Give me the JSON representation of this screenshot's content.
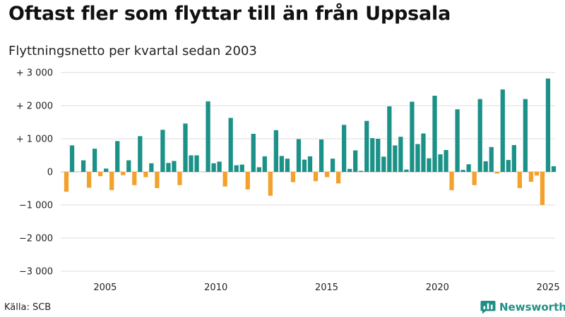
{
  "header": {
    "title": "Oftast fler som flyttar till än från Uppsala",
    "subtitle": "Flyttningsnetto per kvartal sedan 2003"
  },
  "footer": {
    "source": "Källa: SCB",
    "brand": "Newsworthy"
  },
  "colors": {
    "positive": "#1b9188",
    "negative": "#f3a12b",
    "grid": "#dddddd",
    "brand": "#1f8f86"
  },
  "icons": {
    "brand_logo": "bar-chart-speech-bubble-icon"
  },
  "chart_data": {
    "type": "bar",
    "title": "Oftast fler som flyttar till än från Uppsala",
    "subtitle": "Flyttningsnetto per kvartal sedan 2003",
    "xlabel": "",
    "ylabel": "",
    "first_period": "2003 Q2",
    "x_range": [
      2003.25,
      2025.25
    ],
    "ylim": [
      -3000,
      3000
    ],
    "yticks": [
      3000,
      2000,
      1000,
      0,
      -1000,
      -2000,
      -3000
    ],
    "ytick_labels": [
      "+ 3 000",
      "+ 2 000",
      "+ 1 000",
      "0",
      "−1 000",
      "−2 000",
      "−3 000"
    ],
    "xticks": [
      2005,
      2010,
      2015,
      2020,
      2025
    ],
    "xtick_labels": [
      "2005",
      "2010",
      "2015",
      "2020",
      "2025"
    ],
    "grid": true,
    "legend": "none",
    "values": [
      -600,
      800,
      0,
      350,
      -480,
      700,
      -130,
      100,
      -550,
      930,
      -100,
      350,
      -400,
      1080,
      -160,
      260,
      -490,
      1270,
      270,
      330,
      -400,
      1460,
      500,
      500,
      0,
      2130,
      260,
      310,
      -440,
      1630,
      200,
      220,
      -530,
      1150,
      140,
      470,
      -720,
      1260,
      480,
      400,
      -310,
      990,
      370,
      470,
      -280,
      980,
      -160,
      400,
      -350,
      1420,
      90,
      650,
      30,
      1540,
      1020,
      1000,
      460,
      1980,
      800,
      1060,
      70,
      2120,
      840,
      1160,
      410,
      2300,
      530,
      660,
      -550,
      1890,
      60,
      230,
      -400,
      2200,
      320,
      750,
      -50,
      2490,
      360,
      810,
      -490,
      2200,
      -300,
      -110,
      -1000,
      2820,
      170
    ]
  }
}
